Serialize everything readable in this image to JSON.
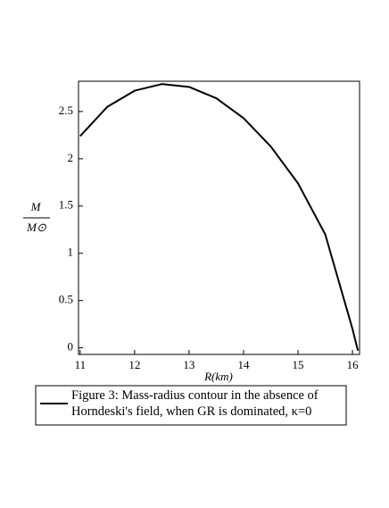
{
  "chart_data": {
    "type": "line",
    "x_label": "R(km)",
    "y_label_numerator": "M",
    "y_label_denominator": "M⊙",
    "x": [
      11,
      11.5,
      12,
      12.5,
      13,
      13.5,
      14,
      14.5,
      15,
      15.5,
      16,
      16.1
    ],
    "series": [
      {
        "name": "Figure 3: Mass-radius contour in the absence of Horndeski's field, when GR is dominated, κ=0",
        "color": "#000000",
        "values": [
          2.24,
          2.55,
          2.72,
          2.79,
          2.76,
          2.64,
          2.43,
          2.13,
          1.74,
          1.2,
          0.2,
          -0.03
        ]
      }
    ],
    "xlim": [
      10.97,
      16.13
    ],
    "ylim": [
      -0.07,
      2.82
    ],
    "xticks": [
      11,
      12,
      13,
      14,
      15,
      16
    ],
    "yticks": [
      0,
      0.5,
      1,
      1.5,
      2,
      2.5
    ],
    "grid": false
  }
}
